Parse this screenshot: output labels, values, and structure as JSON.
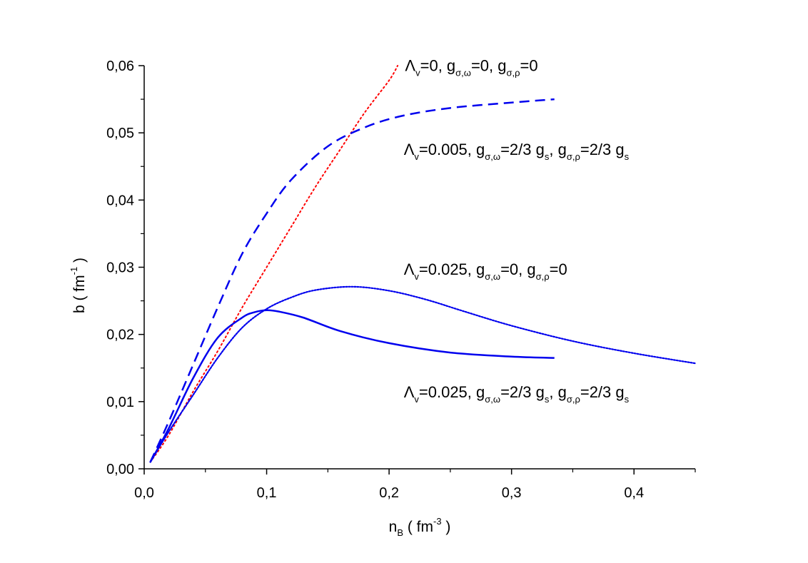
{
  "chart_data": {
    "type": "line",
    "title": "",
    "xlabel": {
      "main": "n",
      "sub": "B",
      "rest": " ( fm",
      "sup": "-3",
      "end": " )"
    },
    "ylabel": {
      "main": "b ( fm",
      "sup": "-1",
      "end": " )"
    },
    "xlim": [
      0,
      0.45
    ],
    "ylim": [
      0,
      0.06
    ],
    "x_ticks": [
      "0,0",
      "0,1",
      "0,2",
      "0,3",
      "0,4"
    ],
    "x_tick_values": [
      0,
      0.1,
      0.2,
      0.3,
      0.4
    ],
    "y_ticks": [
      "0,00",
      "0,01",
      "0,02",
      "0,03",
      "0,04",
      "0,05",
      "0,06"
    ],
    "y_tick_values": [
      0,
      0.01,
      0.02,
      0.03,
      0.04,
      0.05,
      0.06
    ],
    "grid": false,
    "series": [
      {
        "style": "dotted-red",
        "color": "#ff0000",
        "x": [
          0.005,
          0.02,
          0.04,
          0.06,
          0.08,
          0.1,
          0.12,
          0.14,
          0.16,
          0.18,
          0.2,
          0.207
        ],
        "y": [
          0.001,
          0.005,
          0.0115,
          0.0175,
          0.024,
          0.03,
          0.036,
          0.042,
          0.0475,
          0.053,
          0.0578,
          0.06
        ]
      },
      {
        "style": "dashed-blue",
        "color": "#0000ee",
        "x": [
          0.005,
          0.02,
          0.04,
          0.06,
          0.08,
          0.1,
          0.12,
          0.15,
          0.18,
          0.21,
          0.25,
          0.3,
          0.335
        ],
        "y": [
          0.001,
          0.007,
          0.0155,
          0.024,
          0.032,
          0.038,
          0.043,
          0.048,
          0.0508,
          0.0525,
          0.0537,
          0.0545,
          0.055
        ]
      },
      {
        "style": "dotted-blue",
        "color": "#0000ee",
        "x": [
          0.005,
          0.02,
          0.04,
          0.06,
          0.08,
          0.1,
          0.12,
          0.14,
          0.17,
          0.2,
          0.23,
          0.26,
          0.3,
          0.35,
          0.4,
          0.45
        ],
        "y": [
          0.001,
          0.0055,
          0.011,
          0.0165,
          0.021,
          0.0238,
          0.0255,
          0.0266,
          0.0271,
          0.0265,
          0.0252,
          0.0235,
          0.0213,
          0.019,
          0.0172,
          0.0157
        ]
      },
      {
        "style": "solid-blue",
        "color": "#0000ee",
        "x": [
          0.005,
          0.02,
          0.04,
          0.06,
          0.08,
          0.09,
          0.1,
          0.11,
          0.13,
          0.16,
          0.2,
          0.25,
          0.3,
          0.335
        ],
        "y": [
          0.001,
          0.006,
          0.0135,
          0.0195,
          0.0225,
          0.0233,
          0.0236,
          0.0234,
          0.0225,
          0.0205,
          0.0187,
          0.0173,
          0.0167,
          0.0165
        ]
      }
    ],
    "annotations": [
      {
        "id": "ann-1",
        "parts": [
          {
            "t": "Λ",
            "s": "n"
          },
          {
            "t": "v",
            "s": "sub"
          },
          {
            "t": "=0, g",
            "s": "n"
          },
          {
            "t": "σ,ω",
            "s": "sub"
          },
          {
            "t": "=0, g",
            "s": "n"
          },
          {
            "t": "σ,ρ",
            "s": "sub"
          },
          {
            "t": "=0",
            "s": "n"
          }
        ],
        "x": 0.213,
        "y": 0.0592
      },
      {
        "id": "ann-2",
        "parts": [
          {
            "t": "Λ",
            "s": "n"
          },
          {
            "t": "v",
            "s": "sub"
          },
          {
            "t": "=0.005, g",
            "s": "n"
          },
          {
            "t": "σ,ω",
            "s": "sub"
          },
          {
            "t": "=2/3 g",
            "s": "n"
          },
          {
            "t": "s",
            "s": "sub"
          },
          {
            "t": ", g",
            "s": "n"
          },
          {
            "t": "σ,ρ",
            "s": "sub"
          },
          {
            "t": "=2/3 g",
            "s": "n"
          },
          {
            "t": "s",
            "s": "sub"
          }
        ],
        "x": 0.212,
        "y": 0.0467
      },
      {
        "id": "ann-3",
        "parts": [
          {
            "t": "Λ",
            "s": "n"
          },
          {
            "t": "v",
            "s": "sub"
          },
          {
            "t": "=0.025, g",
            "s": "n"
          },
          {
            "t": "σ,ω",
            "s": "sub"
          },
          {
            "t": "=0, g",
            "s": "n"
          },
          {
            "t": "σ,ρ",
            "s": "sub"
          },
          {
            "t": "=0",
            "s": "n"
          }
        ],
        "x": 0.212,
        "y": 0.0289
      },
      {
        "id": "ann-4",
        "parts": [
          {
            "t": "Λ",
            "s": "n"
          },
          {
            "t": "v",
            "s": "sub"
          },
          {
            "t": "=0.025, g",
            "s": "n"
          },
          {
            "t": "σ,ω",
            "s": "sub"
          },
          {
            "t": "=2/3 g",
            "s": "n"
          },
          {
            "t": "s",
            "s": "sub"
          },
          {
            "t": ", g",
            "s": "n"
          },
          {
            "t": "σ,ρ",
            "s": "sub"
          },
          {
            "t": "=2/3 g",
            "s": "n"
          },
          {
            "t": "s",
            "s": "sub"
          }
        ],
        "x": 0.212,
        "y": 0.0106
      }
    ]
  }
}
